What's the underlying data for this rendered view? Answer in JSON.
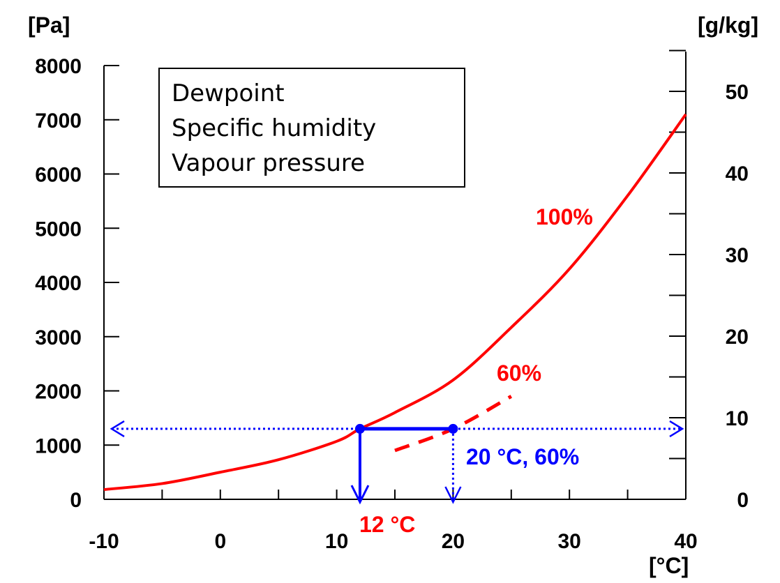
{
  "chart_data": {
    "type": "line",
    "title": "",
    "xlabel": "[°C]",
    "ylabel_left": "[Pa]",
    "ylabel_right": "[g/kg]",
    "xlim": [
      -10,
      40
    ],
    "ylim_left": [
      0,
      8000
    ],
    "ylim_right": [
      0,
      55
    ],
    "x_ticks": [
      -10,
      0,
      10,
      20,
      30,
      40
    ],
    "x_tick_labels": [
      "-10",
      "0",
      "10",
      "20",
      "30",
      "40"
    ],
    "y_left_ticks": [
      0,
      1000,
      2000,
      3000,
      4000,
      5000,
      6000,
      7000,
      8000
    ],
    "y_left_tick_labels": [
      "0",
      "1000",
      "2000",
      "3000",
      "4000",
      "5000",
      "6000",
      "7000",
      "8000"
    ],
    "y_right_ticks": [
      0,
      10,
      20,
      30,
      40,
      50
    ],
    "y_right_tick_labels": [
      "0",
      "10",
      "20",
      "30",
      "40",
      "50"
    ],
    "grid": false,
    "legend_position": "top-left",
    "legend_lines": [
      "Dewpoint",
      "Specific humidity",
      "Vapour pressure"
    ],
    "series": [
      {
        "name": "100%",
        "style": "solid",
        "color": "#ff0000",
        "x": [
          -10,
          -5,
          0,
          5,
          10,
          12,
          15,
          20,
          25,
          30,
          35,
          40
        ],
        "y": [
          180,
          290,
          500,
          730,
          1070,
          1300,
          1600,
          2200,
          3170,
          4250,
          5600,
          7100
        ]
      },
      {
        "name": "60%",
        "style": "dashed",
        "color": "#ff0000",
        "x": [
          15,
          20,
          25
        ],
        "y": [
          900,
          1300,
          1900
        ]
      }
    ],
    "annotations": {
      "dewpoint_label": "12 °C",
      "state_label": "20 °C, 60%",
      "dewpoint_x": 12,
      "state_x": 20,
      "state_vapour_pressure": 1300
    },
    "colors": {
      "curve": "#ff0000",
      "guide": "#0000ff",
      "axis": "#000000"
    }
  }
}
